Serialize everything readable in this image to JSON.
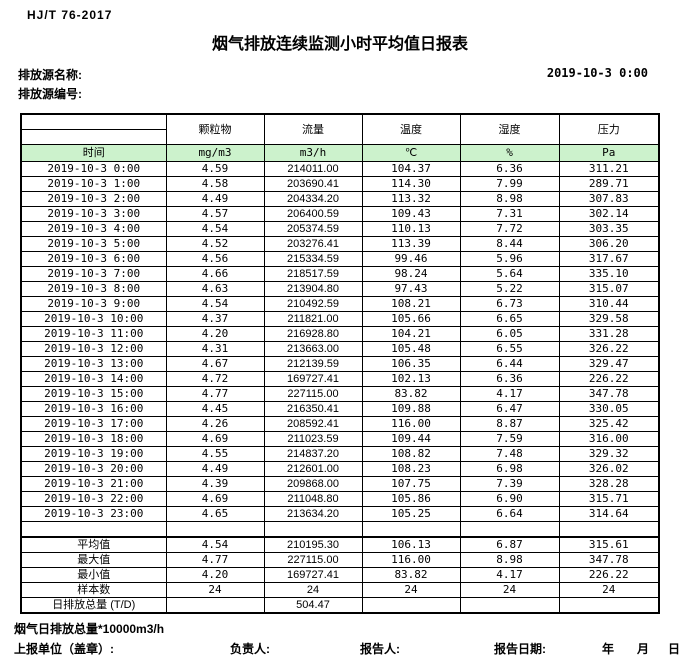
{
  "header": {
    "standard": "HJ/T 76-2017",
    "title": "烟气排放连续监测小时平均值日报表",
    "source_name_label": "排放源名称:",
    "source_code_label": "排放源编号:",
    "datetime": "2019-10-3 0:00"
  },
  "colors": {
    "header_green": "#ccf2cc",
    "border": "#000000"
  },
  "table": {
    "time_header": "时间",
    "pollutant_headers": [
      "颗粒物",
      "流量",
      "温度",
      "湿度",
      "压力"
    ],
    "unit_headers": [
      "mg/m3",
      "m3/h",
      "℃",
      "%",
      "Pa"
    ],
    "rows": [
      {
        "time": "2019-10-3 0:00",
        "values": [
          "4.59",
          "214011.00",
          "104.37",
          "6.36",
          "311.21"
        ]
      },
      {
        "time": "2019-10-3 1:00",
        "values": [
          "4.58",
          "203690.41",
          "114.30",
          "7.99",
          "289.71"
        ]
      },
      {
        "time": "2019-10-3 2:00",
        "values": [
          "4.49",
          "204334.20",
          "113.32",
          "8.98",
          "307.83"
        ]
      },
      {
        "time": "2019-10-3 3:00",
        "values": [
          "4.57",
          "206400.59",
          "109.43",
          "7.31",
          "302.14"
        ]
      },
      {
        "time": "2019-10-3 4:00",
        "values": [
          "4.54",
          "205374.59",
          "110.13",
          "7.72",
          "303.35"
        ]
      },
      {
        "time": "2019-10-3 5:00",
        "values": [
          "4.52",
          "203276.41",
          "113.39",
          "8.44",
          "306.20"
        ]
      },
      {
        "time": "2019-10-3 6:00",
        "values": [
          "4.56",
          "215334.59",
          "99.46",
          "5.96",
          "317.67"
        ]
      },
      {
        "time": "2019-10-3 7:00",
        "values": [
          "4.66",
          "218517.59",
          "98.24",
          "5.64",
          "335.10"
        ]
      },
      {
        "time": "2019-10-3 8:00",
        "values": [
          "4.63",
          "213904.80",
          "97.43",
          "5.22",
          "315.07"
        ]
      },
      {
        "time": "2019-10-3 9:00",
        "values": [
          "4.54",
          "210492.59",
          "108.21",
          "6.73",
          "310.44"
        ]
      },
      {
        "time": "2019-10-3 10:00",
        "values": [
          "4.37",
          "211821.00",
          "105.66",
          "6.65",
          "329.58"
        ]
      },
      {
        "time": "2019-10-3 11:00",
        "values": [
          "4.20",
          "216928.80",
          "104.21",
          "6.05",
          "331.28"
        ]
      },
      {
        "time": "2019-10-3 12:00",
        "values": [
          "4.31",
          "213663.00",
          "105.48",
          "6.55",
          "326.22"
        ]
      },
      {
        "time": "2019-10-3 13:00",
        "values": [
          "4.67",
          "212139.59",
          "106.35",
          "6.44",
          "329.47"
        ]
      },
      {
        "time": "2019-10-3 14:00",
        "values": [
          "4.72",
          "169727.41",
          "102.13",
          "6.36",
          "226.22"
        ]
      },
      {
        "time": "2019-10-3 15:00",
        "values": [
          "4.77",
          "227115.00",
          "83.82",
          "4.17",
          "347.78"
        ]
      },
      {
        "time": "2019-10-3 16:00",
        "values": [
          "4.45",
          "216350.41",
          "109.88",
          "6.47",
          "330.05"
        ]
      },
      {
        "time": "2019-10-3 17:00",
        "values": [
          "4.26",
          "208592.41",
          "116.00",
          "8.87",
          "325.42"
        ]
      },
      {
        "time": "2019-10-3 18:00",
        "values": [
          "4.69",
          "211023.59",
          "109.44",
          "7.59",
          "316.00"
        ]
      },
      {
        "time": "2019-10-3 19:00",
        "values": [
          "4.55",
          "214837.20",
          "108.82",
          "7.48",
          "329.32"
        ]
      },
      {
        "time": "2019-10-3 20:00",
        "values": [
          "4.49",
          "212601.00",
          "108.23",
          "6.98",
          "326.02"
        ]
      },
      {
        "time": "2019-10-3 21:00",
        "values": [
          "4.39",
          "209868.00",
          "107.75",
          "7.39",
          "328.28"
        ]
      },
      {
        "time": "2019-10-3 22:00",
        "values": [
          "4.69",
          "211048.80",
          "105.86",
          "6.90",
          "315.71"
        ]
      },
      {
        "time": "2019-10-3 23:00",
        "values": [
          "4.65",
          "213634.20",
          "105.25",
          "6.64",
          "314.64"
        ]
      }
    ],
    "summary": [
      {
        "label": "平均值",
        "values": [
          "4.54",
          "210195.30",
          "106.13",
          "6.87",
          "315.61"
        ]
      },
      {
        "label": "最大值",
        "values": [
          "4.77",
          "227115.00",
          "116.00",
          "8.98",
          "347.78"
        ]
      },
      {
        "label": "最小值",
        "values": [
          "4.20",
          "169727.41",
          "83.82",
          "4.17",
          "226.22"
        ]
      },
      {
        "label": "样本数",
        "values": [
          "24",
          "24",
          "24",
          "24",
          "24"
        ]
      },
      {
        "label": "日排放总量 (T/D)",
        "values": [
          "",
          "504.47",
          "",
          "",
          ""
        ]
      }
    ]
  },
  "footer": {
    "note": "烟气日排放总量*10000m3/h",
    "report_unit_label": "上报单位（盖章）:",
    "responsible_label": "负责人:",
    "reporter_label": "报告人:",
    "report_date_label": "报告日期:",
    "year_label": "年",
    "month_label": "月",
    "day_label": "日"
  }
}
